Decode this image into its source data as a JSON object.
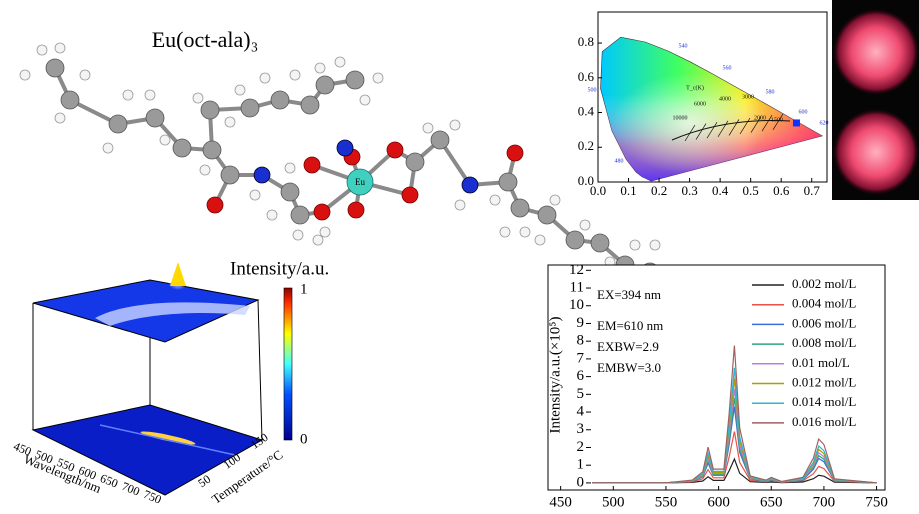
{
  "molecule": {
    "title": "Eu(oct-ala)₃",
    "center_atom": "Eu"
  },
  "surface_plot": {
    "zlabel": "Intensity/a.u.",
    "colorbar_ticks": [
      1,
      0
    ],
    "xlabel": "Wavelength/nm",
    "xticks": [
      450,
      500,
      550,
      600,
      650,
      700,
      750
    ],
    "ylabel": "Temperature/°C",
    "yticks": [
      50,
      100,
      150
    ]
  },
  "chart_data": [
    {
      "type": "scatter",
      "xlim": [
        0,
        0.75
      ],
      "ylim": [
        0,
        0.95
      ],
      "xticks": [
        {
          "value": 0,
          "label": "0.0"
        },
        0.1,
        0.2,
        0.3,
        0.4,
        0.5,
        0.6,
        0.7
      ],
      "yticks": [
        {
          "value": 0,
          "label": "0.0"
        },
        0.2,
        0.4,
        0.6,
        0.8
      ],
      "x": [
        0.65
      ],
      "values": [
        0.34
      ],
      "color": "#1030ff",
      "wavelength_labels": [
        "540",
        "560",
        "500",
        "580",
        "600",
        "620",
        "480"
      ],
      "planck_labels": [
        "T_c(K)",
        "10000",
        "6000",
        "4000",
        "3000",
        "2000",
        "1500"
      ]
    },
    {
      "type": "line",
      "xlim": [
        438,
        758
      ],
      "ylim": [
        -0.4,
        12.3
      ],
      "xticks": [
        450,
        500,
        550,
        600,
        650,
        700,
        750
      ],
      "yticks": [
        0,
        1,
        2,
        3,
        4,
        5,
        6,
        7,
        8,
        9,
        10,
        11,
        12
      ],
      "ylabel": "Intensity/a.u.(×10⁵)",
      "legend": "upper right",
      "annotations": [
        "EX=394 nm",
        "EM=610 nm",
        "EXBW=2.9",
        "EMBW=3.0"
      ],
      "x": [
        480,
        550,
        575,
        585,
        590,
        595,
        605,
        610,
        615,
        620,
        630,
        645,
        650,
        660,
        680,
        690,
        695,
        700,
        710,
        750
      ],
      "series": [
        {
          "name": "0.002 mol/L",
          "color": "#222222",
          "values": [
            0,
            0,
            0.03,
            0.11,
            0.35,
            0.14,
            0.14,
            0.68,
            1.35,
            0.54,
            0.07,
            0.03,
            0.05,
            0.01,
            0.05,
            0.24,
            0.43,
            0.38,
            0.04,
            0
          ]
        },
        {
          "name": "0.004 mol/L",
          "color": "#e8524a",
          "values": [
            0,
            0,
            0.06,
            0.23,
            0.75,
            0.29,
            0.29,
            1.45,
            2.9,
            1.16,
            0.15,
            0.06,
            0.12,
            0.03,
            0.12,
            0.52,
            0.93,
            0.81,
            0.09,
            0
          ]
        },
        {
          "name": "0.006 mol/L",
          "color": "#3a6fd8",
          "values": [
            0,
            0,
            0.09,
            0.34,
            1.12,
            0.43,
            0.43,
            2.15,
            4.3,
            1.72,
            0.22,
            0.09,
            0.17,
            0.04,
            0.17,
            0.77,
            1.38,
            1.2,
            0.13,
            0
          ]
        },
        {
          "name": "0.008 mol/L",
          "color": "#2fa67a",
          "values": [
            0,
            0,
            0.1,
            0.38,
            1.25,
            0.48,
            0.48,
            2.4,
            4.8,
            1.92,
            0.24,
            0.1,
            0.19,
            0.05,
            0.19,
            0.86,
            1.54,
            1.34,
            0.14,
            0
          ]
        },
        {
          "name": "0.01 mol/L",
          "color": "#b77fe0",
          "values": [
            0,
            0,
            0.11,
            0.42,
            1.38,
            0.53,
            0.53,
            2.65,
            5.3,
            2.12,
            0.27,
            0.11,
            0.21,
            0.05,
            0.21,
            0.95,
            1.7,
            1.48,
            0.16,
            0
          ]
        },
        {
          "name": "0.012 mol/L",
          "color": "#b59a00",
          "values": [
            0,
            0,
            0.12,
            0.47,
            1.53,
            0.59,
            0.59,
            2.95,
            5.9,
            2.36,
            0.3,
            0.12,
            0.24,
            0.06,
            0.24,
            1.06,
            1.89,
            1.65,
            0.18,
            0
          ]
        },
        {
          "name": "0.014 mol/L",
          "color": "#27b8d8",
          "values": [
            0,
            0,
            0.13,
            0.52,
            1.69,
            0.65,
            0.65,
            3.25,
            6.5,
            2.6,
            0.33,
            0.13,
            0.26,
            0.07,
            0.26,
            1.17,
            2.08,
            1.82,
            0.2,
            0
          ]
        },
        {
          "name": "0.016 mol/L",
          "color": "#a0615e",
          "values": [
            0,
            0,
            0.16,
            0.62,
            2.02,
            0.78,
            0.78,
            3.88,
            7.75,
            3.1,
            0.39,
            0.16,
            0.31,
            0.08,
            0.31,
            1.4,
            2.48,
            2.17,
            0.23,
            0
          ]
        }
      ]
    }
  ]
}
